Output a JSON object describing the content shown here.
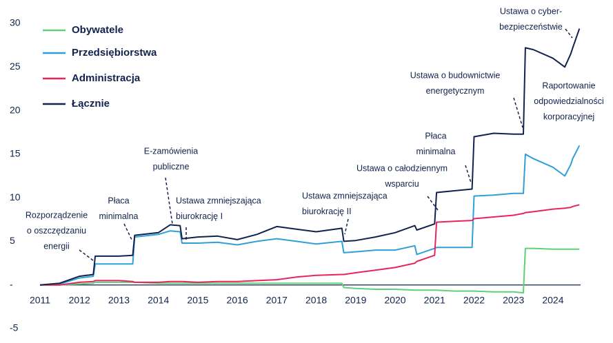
{
  "chart_data": {
    "type": "line",
    "x": [
      2011.0,
      2011.5,
      2012.0,
      2012.35,
      2012.4,
      2013.0,
      2013.35,
      2013.4,
      2014.0,
      2014.3,
      2014.55,
      2014.6,
      2015.0,
      2015.5,
      2016.0,
      2016.5,
      2017.0,
      2017.5,
      2018.0,
      2018.65,
      2018.7,
      2019.0,
      2019.5,
      2020.0,
      2020.5,
      2020.55,
      2021.0,
      2021.05,
      2021.5,
      2021.95,
      2022.0,
      2022.5,
      2023.0,
      2023.25,
      2023.3,
      2023.5,
      2024.0,
      2024.3,
      2024.45,
      2024.5,
      2024.67
    ],
    "series": [
      {
        "name": "Obywatele",
        "color": "#5fcf7a",
        "values": [
          0,
          0,
          0.1,
          0.2,
          0.3,
          0.3,
          0.3,
          0.3,
          0.2,
          0.2,
          0.2,
          0.2,
          0.2,
          0.2,
          0.2,
          0.2,
          0.2,
          0.2,
          0.2,
          0.2,
          -0.3,
          -0.4,
          -0.5,
          -0.5,
          -0.6,
          -0.6,
          -0.6,
          -0.6,
          -0.7,
          -0.7,
          -0.7,
          -0.8,
          -0.8,
          -0.9,
          4.2,
          4.2,
          4.1,
          4.1,
          4.1,
          4.1,
          4.1
        ]
      },
      {
        "name": "Przedsiębiorstwa",
        "color": "#2ea0d6",
        "values": [
          0,
          0.1,
          0.8,
          1,
          2.4,
          2.4,
          2.4,
          5.5,
          5.8,
          6.2,
          6.1,
          4.8,
          4.8,
          4.9,
          4.6,
          5.0,
          5.3,
          5.0,
          4.7,
          5.0,
          3.7,
          3.8,
          4.0,
          4.0,
          4.5,
          3.5,
          4.2,
          4.3,
          4.3,
          4.3,
          10.2,
          10.3,
          10.5,
          10.5,
          15.0,
          14.5,
          13.5,
          12.5,
          13.8,
          14.5,
          16.0
        ]
      },
      {
        "name": "Administracja",
        "color": "#e8245a",
        "values": [
          0,
          0,
          0.3,
          0.4,
          0.5,
          0.5,
          0.4,
          0.3,
          0.3,
          0.4,
          0.4,
          0.4,
          0.3,
          0.4,
          0.4,
          0.5,
          0.6,
          0.9,
          1.1,
          1.2,
          1.2,
          1.4,
          1.7,
          2.0,
          2.5,
          2.7,
          3.4,
          7.2,
          7.3,
          7.4,
          7.6,
          7.8,
          8.0,
          8.2,
          8.3,
          8.4,
          8.7,
          8.8,
          8.9,
          9.0,
          9.2
        ]
      },
      {
        "name": "Łącznie",
        "color": "#12224e",
        "values": [
          0,
          0.2,
          1,
          1.2,
          3.3,
          3.3,
          3.4,
          5.7,
          6,
          6.9,
          6.8,
          5.3,
          5.5,
          5.6,
          5.2,
          5.8,
          6.7,
          6.4,
          6.1,
          6.5,
          5.0,
          5.1,
          5.5,
          6.0,
          6.8,
          6.3,
          7.0,
          10.6,
          10.8,
          11.0,
          17.0,
          17.4,
          17.3,
          17.3,
          27.2,
          27.0,
          26.0,
          25.0,
          26.5,
          27.2,
          29.4
        ]
      }
    ],
    "xlim": [
      2011,
      2024.7
    ],
    "xticks": [
      2011,
      2012,
      2013,
      2014,
      2015,
      2016,
      2017,
      2018,
      2019,
      2020,
      2021,
      2022,
      2023,
      2024
    ],
    "ylim": [
      -5,
      30
    ],
    "yticks": [
      30,
      25,
      20,
      15,
      10,
      5,
      {
        "value": 0,
        "label": "-"
      },
      -5
    ],
    "legend": "top-left",
    "annotations": [
      {
        "lines": [
          "Rozporządzenie",
          "o oszczędzaniu",
          "energii"
        ]
      },
      {
        "lines": [
          "Płaca",
          "minimalna"
        ]
      },
      {
        "lines": [
          "E-zamówienia",
          "publiczne"
        ]
      },
      {
        "lines": [
          "Ustawa zmniejszająca",
          "biurokrację I"
        ]
      },
      {
        "lines": [
          "Ustawa zmniejszająca",
          "biurokrację II"
        ]
      },
      {
        "lines": [
          "Płaca",
          "minimalna"
        ]
      },
      {
        "lines": [
          "Ustawa o całodziennym",
          "wsparciu"
        ]
      },
      {
        "lines": [
          "Ustawa o budownictwie",
          "energetycznym"
        ]
      },
      {
        "lines": [
          "Raportowanie",
          "odpowiedzialności",
          "korporacyjnej"
        ]
      },
      {
        "lines": [
          "Ustawa o cyber-",
          "bezpieczeństwie"
        ]
      }
    ]
  }
}
